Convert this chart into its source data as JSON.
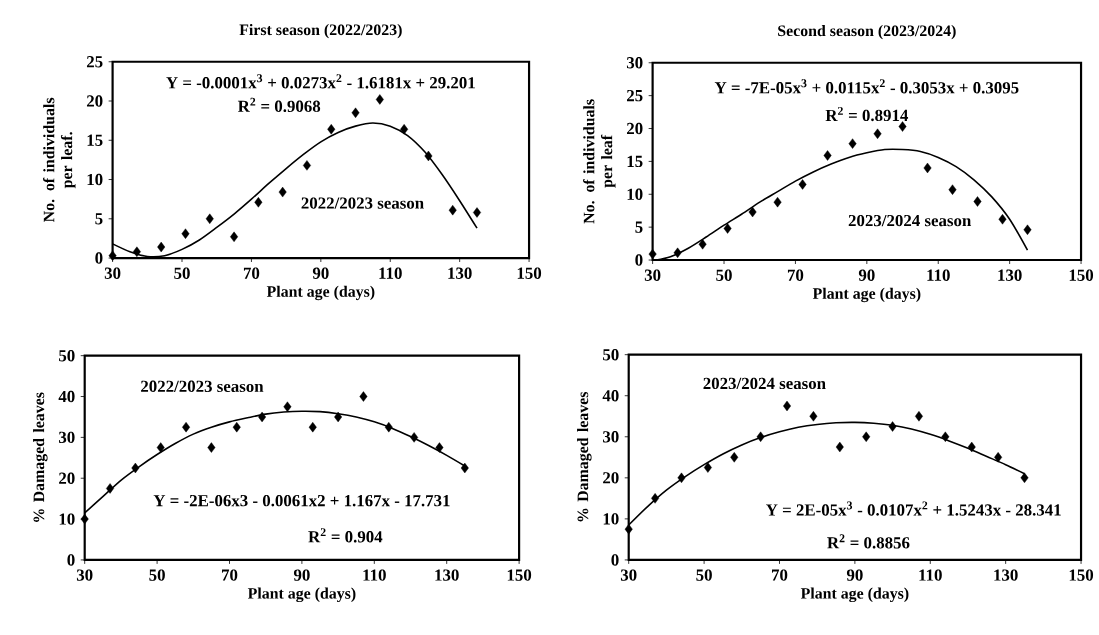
{
  "chart_data": [
    {
      "type": "scatter",
      "title": "First season (2022/2023)",
      "xlabel": "Plant age (days)",
      "ylabel": "No. of individuals per leaf.",
      "xlim": [
        30,
        150
      ],
      "xticks": [
        30,
        50,
        70,
        90,
        110,
        130,
        150
      ],
      "ylim": [
        0,
        25
      ],
      "yticks": [
        0,
        5,
        10,
        15,
        20,
        25
      ],
      "annotations": [
        "Y = -0.0001x$^{3}$ + 0.0273x$^{2}$ - 1.6181x + 29.201",
        "R$^{2}$ = 0.9068",
        "2022/2023 season"
      ],
      "series": [
        {
          "color": "#000000",
          "marker": "diamond",
          "x": [
            30,
            37,
            44,
            51,
            58,
            65,
            72,
            79,
            86,
            93,
            100,
            107,
            114,
            121,
            128,
            135
          ],
          "values": [
            0.3,
            0.8,
            1.4,
            3.1,
            5.0,
            2.7,
            7.1,
            8.4,
            11.8,
            16.4,
            18.5,
            20.2,
            16.4,
            13.0,
            6.1,
            5.8
          ]
        },
        {
          "type": "line",
          "color": "#000000",
          "x": [
            30,
            35,
            40,
            45,
            50,
            55,
            60,
            65,
            70,
            75,
            80,
            85,
            90,
            95,
            100,
            105,
            110,
            115,
            120,
            125,
            130,
            135
          ],
          "values": [
            1.8,
            0.8,
            0.2,
            0.3,
            1.1,
            2.3,
            3.9,
            5.6,
            7.5,
            9.5,
            11.4,
            13.2,
            14.8,
            16.0,
            16.8,
            17.2,
            16.8,
            15.6,
            13.5,
            10.6,
            7.3,
            3.8
          ]
        }
      ]
    },
    {
      "type": "scatter",
      "title": "Second season (2023/2024)",
      "xlabel": "Plant age (days)",
      "ylabel": "No. of individuals per leaf",
      "xlim": [
        30,
        150
      ],
      "xticks": [
        30,
        50,
        70,
        90,
        110,
        130,
        150
      ],
      "ylim": [
        0,
        30
      ],
      "yticks": [
        0,
        5,
        10,
        15,
        20,
        25,
        30
      ],
      "annotations": [
        "Y = -7E-05x$^{3}$ + 0.0115x$^{2}$ - 0.3053x + 0.3095",
        "R$^{2}$ = 0.8914",
        "2023/2024 season"
      ],
      "series": [
        {
          "color": "#000000",
          "marker": "diamond",
          "x": [
            30,
            37,
            44,
            51,
            58,
            65,
            72,
            79,
            86,
            93,
            100,
            107,
            114,
            121,
            128,
            135
          ],
          "values": [
            0.9,
            1.1,
            2.4,
            4.8,
            7.3,
            8.8,
            11.5,
            15.9,
            17.7,
            19.2,
            20.3,
            14.0,
            10.7,
            8.9,
            6.2,
            4.6
          ]
        },
        {
          "type": "line",
          "color": "#000000",
          "x": [
            31,
            35,
            40,
            45,
            50,
            55,
            60,
            65,
            70,
            75,
            80,
            85,
            90,
            95,
            100,
            105,
            110,
            115,
            120,
            125,
            130,
            135
          ],
          "values": [
            0,
            0.5,
            1.8,
            3.5,
            5.3,
            7.0,
            8.8,
            10.4,
            12.0,
            13.4,
            14.6,
            15.6,
            16.3,
            16.8,
            16.8,
            16.5,
            15.6,
            14.2,
            12.2,
            9.6,
            6.2,
            1.5
          ]
        }
      ]
    },
    {
      "type": "scatter",
      "xlabel": "Plant age (days)",
      "ylabel": "% Damaged leaves",
      "xlim": [
        30,
        150
      ],
      "xticks": [
        30,
        50,
        70,
        90,
        110,
        130,
        150
      ],
      "ylim": [
        0,
        50
      ],
      "yticks": [
        0,
        10,
        20,
        30,
        40,
        50
      ],
      "annotations": [
        "2022/2023 season",
        "Y = -2E-06x3 - 0.0061x2 + 1.167x - 17.731",
        "R$^{2}$ = 0.904"
      ],
      "series": [
        {
          "color": "#000000",
          "marker": "diamond",
          "x": [
            30,
            37,
            44,
            51,
            58,
            65,
            72,
            79,
            86,
            93,
            100,
            107,
            114,
            121,
            128,
            135
          ],
          "values": [
            10,
            17.5,
            22.5,
            27.5,
            32.5,
            27.5,
            32.5,
            35,
            37.5,
            32.5,
            35,
            40,
            32.5,
            30,
            27.5,
            22.5
          ]
        },
        {
          "type": "line",
          "color": "#000000",
          "x": [
            30,
            35,
            40,
            45,
            50,
            55,
            60,
            65,
            70,
            75,
            80,
            85,
            90,
            95,
            100,
            105,
            110,
            115,
            120,
            125,
            130,
            135
          ],
          "values": [
            11.5,
            15.5,
            19.5,
            22.8,
            25.8,
            28.5,
            30.8,
            32.5,
            33.8,
            34.8,
            35.7,
            36.2,
            36.4,
            36.3,
            35.8,
            35.0,
            33.8,
            32.2,
            30.2,
            28.0,
            25.6,
            23.0
          ]
        }
      ]
    },
    {
      "type": "scatter",
      "xlabel": "Plant age (days)",
      "ylabel": "% Damaged leaves",
      "xlim": [
        30,
        150
      ],
      "xticks": [
        30,
        50,
        70,
        90,
        110,
        130,
        150
      ],
      "ylim": [
        0,
        50
      ],
      "yticks": [
        0,
        10,
        20,
        30,
        40,
        50
      ],
      "annotations": [
        "2023/2024 season",
        "Y = 2E-05x$^{3}$ - 0.0107x$^{2}$ + 1.5243x - 28.341",
        "R$^{2}$ = 0.8856"
      ],
      "series": [
        {
          "color": "#000000",
          "marker": "diamond",
          "x": [
            30,
            37,
            44,
            51,
            58,
            65,
            72,
            79,
            86,
            93,
            100,
            107,
            114,
            121,
            128,
            135
          ],
          "values": [
            7.5,
            15,
            20,
            22.5,
            25,
            30,
            37.5,
            35,
            27.5,
            30,
            32.5,
            35,
            30,
            27.5,
            25,
            20
          ]
        },
        {
          "type": "line",
          "color": "#000000",
          "x": [
            30,
            35,
            40,
            45,
            50,
            55,
            60,
            65,
            70,
            75,
            80,
            85,
            90,
            95,
            100,
            105,
            110,
            115,
            120,
            125,
            130,
            135
          ],
          "values": [
            8.5,
            13,
            17,
            20.3,
            23.2,
            25.8,
            28,
            29.8,
            31.2,
            32.3,
            33,
            33.4,
            33.5,
            33.3,
            32.8,
            31.9,
            30.6,
            29,
            27.2,
            25.2,
            23.2,
            21
          ]
        }
      ]
    }
  ]
}
